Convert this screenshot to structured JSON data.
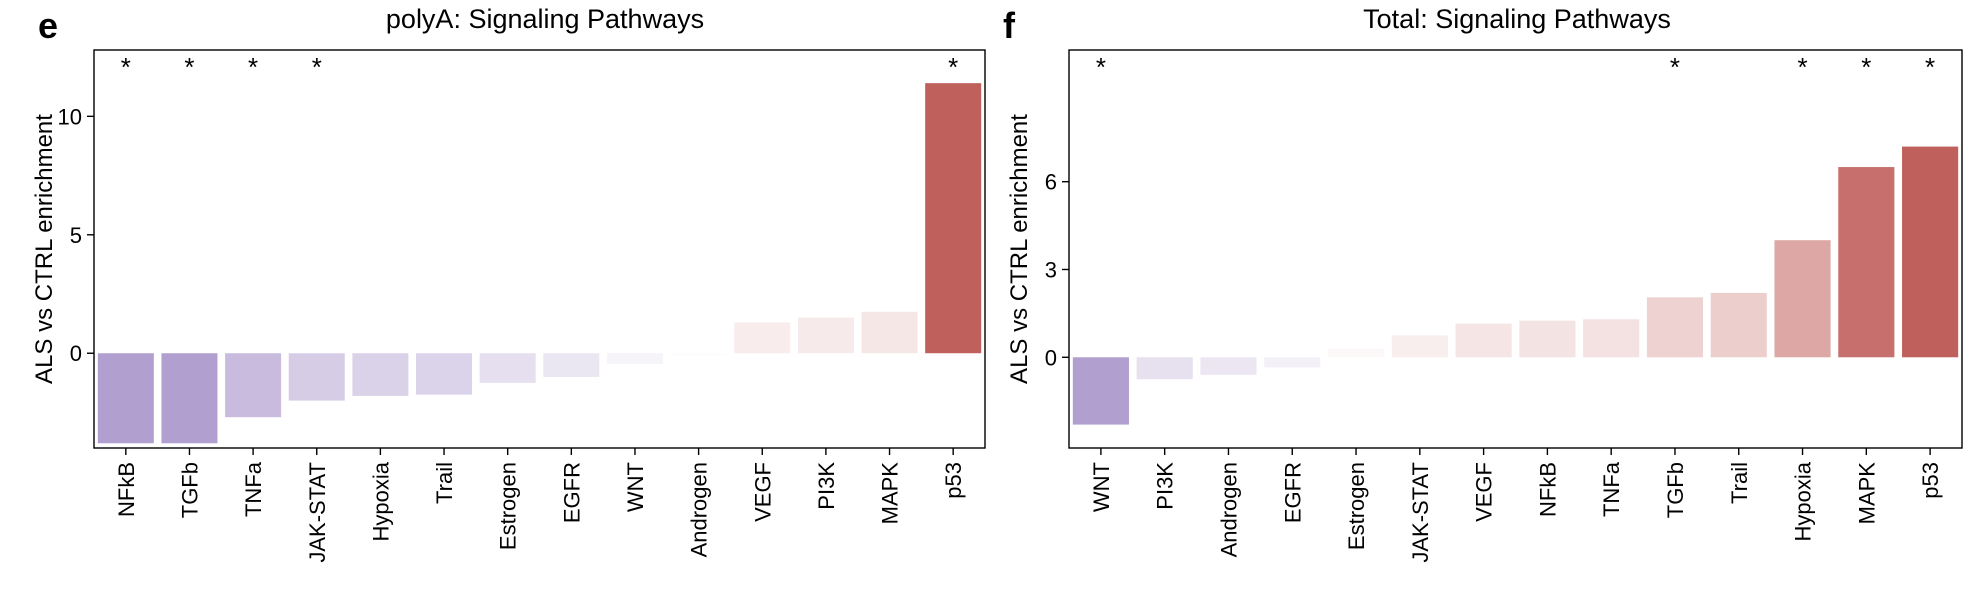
{
  "colors": {
    "low": "#b19fcf",
    "mid": "#ffffff",
    "high": "#c0605c"
  },
  "chart_data": [
    {
      "panel": "e",
      "type": "bar",
      "title": "polyA: Signaling Pathways",
      "ylabel": "ALS vs CTRL enrichment",
      "xlabel": "",
      "ylim": [
        -4,
        12.8
      ],
      "yticks": [
        0,
        5,
        10
      ],
      "categories": [
        "NFkB",
        "TGFb",
        "TNFa",
        "JAK-STAT",
        "Hypoxia",
        "Trail",
        "Estrogen",
        "EGFR",
        "WNT",
        "Androgen",
        "VEGF",
        "PI3K",
        "MAPK",
        "p53"
      ],
      "values": [
        -3.8,
        -3.8,
        -2.7,
        -2.0,
        -1.8,
        -1.75,
        -1.25,
        -1.0,
        -0.45,
        -0.1,
        1.3,
        1.5,
        1.75,
        11.4
      ],
      "significant": [
        true,
        true,
        true,
        true,
        false,
        false,
        false,
        false,
        false,
        false,
        false,
        false,
        false,
        true
      ],
      "color_range": [
        -3.8,
        11.4
      ]
    },
    {
      "panel": "f",
      "type": "bar",
      "title": "Total: Signaling Pathways",
      "ylabel": "ALS vs CTRL enrichment",
      "xlabel": "",
      "ylim": [
        -3.1,
        10.5
      ],
      "yticks": [
        0,
        3,
        6
      ],
      "categories": [
        "WNT",
        "PI3K",
        "Androgen",
        "EGFR",
        "Estrogen",
        "JAK-STAT",
        "VEGF",
        "NFkB",
        "TNFa",
        "TGFb",
        "Trail",
        "Hypoxia",
        "MAPK",
        "p53"
      ],
      "values": [
        -2.3,
        -0.75,
        -0.6,
        -0.35,
        0.3,
        0.75,
        1.15,
        1.25,
        1.3,
        2.05,
        2.2,
        4.0,
        6.5,
        7.2
      ],
      "significant": [
        true,
        false,
        false,
        false,
        false,
        false,
        false,
        false,
        false,
        true,
        false,
        true,
        true,
        true
      ],
      "color_range": [
        -2.3,
        7.2
      ]
    }
  ]
}
